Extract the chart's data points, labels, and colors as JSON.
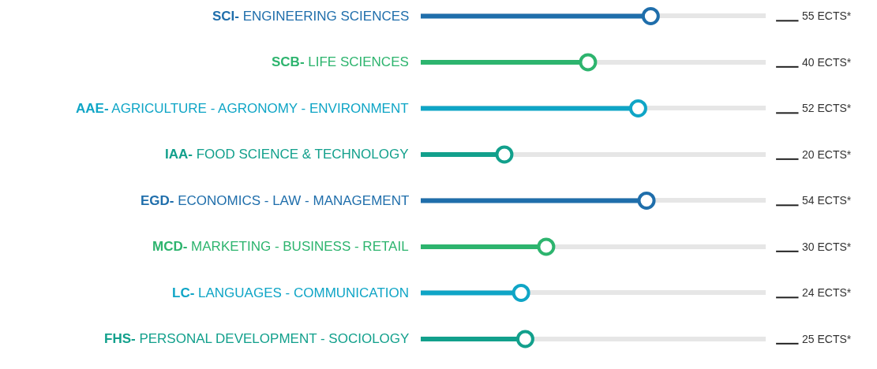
{
  "chart_data": {
    "type": "lollipop",
    "orientation": "horizontal",
    "categories": [
      "SCI- ENGINEERING SCIENCES",
      "SCB- LIFE SCIENCES",
      "AAE- AGRICULTURE - AGRONOMY - ENVIRONMENT",
      "IAA- FOOD SCIENCE & TECHNOLOGY",
      "EGD- ECONOMICS - LAW - MANAGEMENT",
      "MCD- MARKETING - BUSINESS - RETAIL",
      "LC- LANGUAGES - COMMUNICATION",
      "FHS- PERSONAL DEVELOPMENT - SOCIOLOGY"
    ],
    "values": [
      55,
      40,
      52,
      20,
      54,
      30,
      24,
      25
    ],
    "colors": [
      "#1f6eab",
      "#2db46e",
      "#0fa5c6",
      "#12a08c",
      "#1f6eab",
      "#2db46e",
      "#0fa5c6",
      "#12a08c"
    ],
    "value_labels": [
      "55 ECTS*",
      "40 ECTS*",
      "52 ECTS*",
      "20 ECTS*",
      "54 ECTS*",
      "30 ECTS*",
      "24 ECTS*",
      "25 ECTS*"
    ],
    "marker": "circle",
    "grid": "y"
  }
}
